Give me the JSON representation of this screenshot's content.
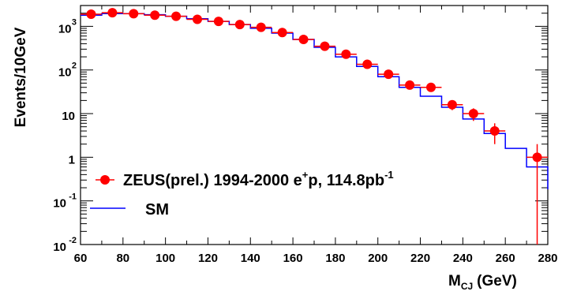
{
  "chart_data": {
    "type": "scatter",
    "title": "",
    "xlabel": {
      "main": "M",
      "sub": "CJ",
      "unit": "(GeV)"
    },
    "ylabel": "Events/10GeV",
    "xlim": [
      60,
      280
    ],
    "ylim": [
      0.01,
      3000
    ],
    "y_scale": "log",
    "x_ticks": [
      "60",
      "80",
      "100",
      "120",
      "140",
      "160",
      "180",
      "200",
      "220",
      "240",
      "260",
      "280"
    ],
    "y_ticks": [
      {
        "value": 1000,
        "base": "10",
        "exp": "3"
      },
      {
        "value": 100,
        "base": "10",
        "exp": "2"
      },
      {
        "value": 10,
        "base": "10",
        "exp": ""
      },
      {
        "value": 1,
        "base": "1",
        "exp": ""
      },
      {
        "value": 0.1,
        "base": "10",
        "exp": "-1"
      },
      {
        "value": 0.01,
        "base": "10",
        "exp": "-2"
      }
    ],
    "grid": false,
    "legend_position": "bottom-left",
    "colors": {
      "data": "#ff0000",
      "sm": "#0000ff"
    },
    "series": [
      {
        "name": "ZEUS(prel.) 1994-2000 e+p, 114.8pb-1",
        "kind": "points-with-errors",
        "x": [
          65,
          75,
          85,
          95,
          105,
          115,
          125,
          135,
          145,
          155,
          165,
          175,
          185,
          195,
          205,
          215,
          225,
          235,
          245,
          255,
          275
        ],
        "y": [
          1900,
          2050,
          1950,
          1800,
          1700,
          1450,
          1300,
          1100,
          950,
          720,
          500,
          350,
          230,
          135,
          80,
          45,
          40,
          16,
          10,
          4,
          1
        ],
        "y_err_low": [
          40,
          45,
          45,
          40,
          40,
          38,
          36,
          33,
          31,
          27,
          22,
          19,
          15,
          12,
          9,
          7,
          6.3,
          4,
          3.2,
          2,
          0.99
        ],
        "y_err_high": [
          40,
          45,
          45,
          40,
          40,
          38,
          36,
          33,
          31,
          27,
          22,
          19,
          15,
          12,
          9,
          7,
          6.3,
          4,
          3.2,
          2,
          1
        ]
      },
      {
        "name": "SM",
        "kind": "step",
        "x_edges": [
          60,
          70,
          80,
          90,
          100,
          110,
          120,
          130,
          140,
          150,
          160,
          170,
          180,
          190,
          200,
          210,
          220,
          230,
          240,
          250,
          260,
          270,
          280
        ],
        "y": [
          1800,
          1950,
          1950,
          1850,
          1700,
          1500,
          1300,
          1100,
          900,
          700,
          500,
          330,
          200,
          120,
          70,
          40,
          25,
          14,
          7.5,
          3.5,
          1.6,
          0.6
        ]
      }
    ],
    "legend": {
      "data_label": {
        "text": "ZEUS(prel.) 1994-2000 e",
        "sup1": "+",
        "mid": "p, 114.8pb",
        "sup2": "-1"
      },
      "sm_label": "SM"
    }
  }
}
